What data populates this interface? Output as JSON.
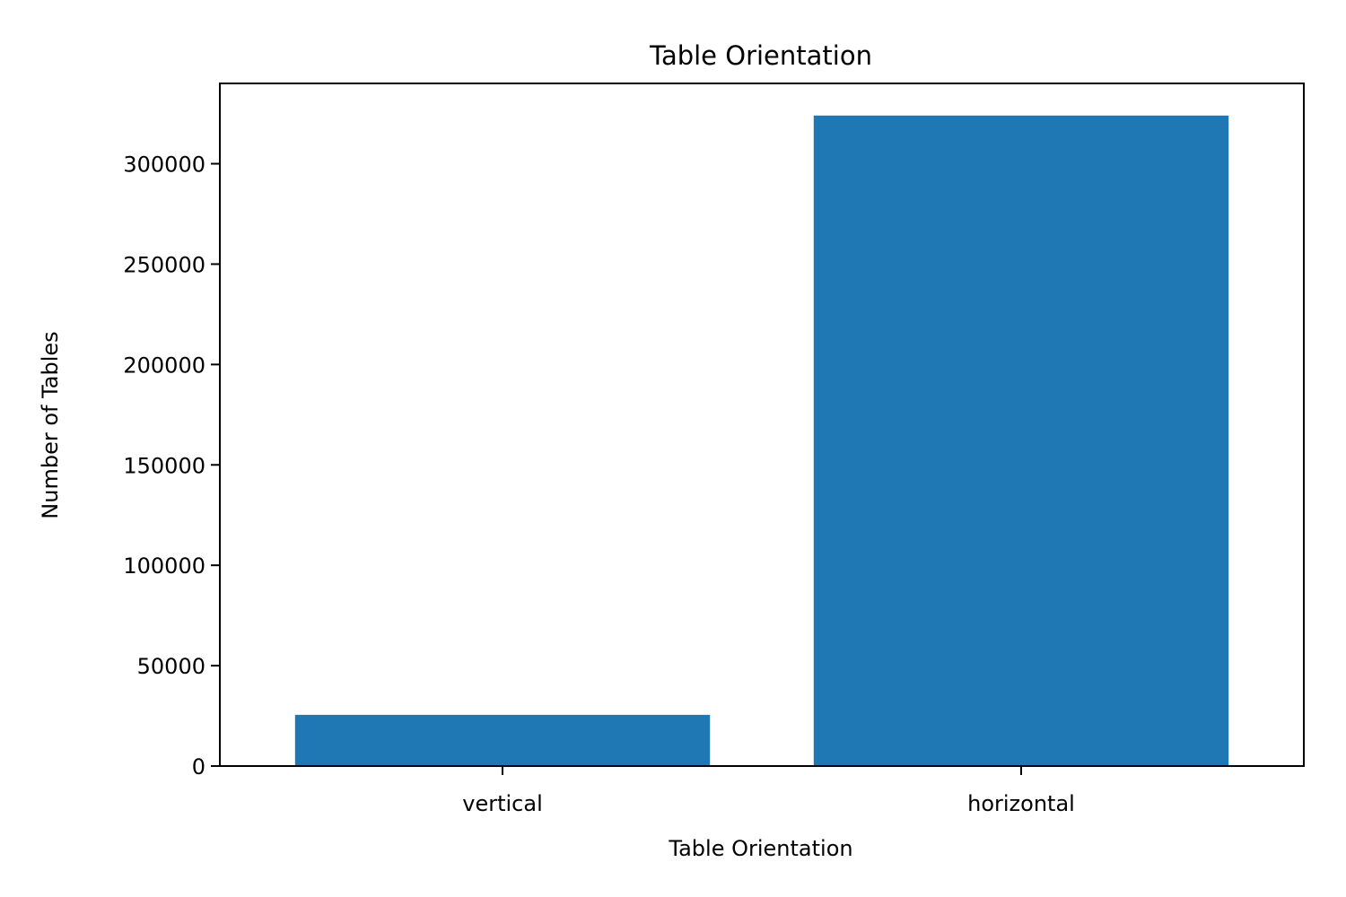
{
  "chart_data": {
    "type": "bar",
    "title": "Table Orientation",
    "xlabel": "Table Orientation",
    "ylabel": "Number of Tables",
    "categories": [
      "vertical",
      "horizontal"
    ],
    "values": [
      25500,
      324000
    ],
    "ylim": [
      0,
      340000
    ],
    "yticks": [
      0,
      50000,
      100000,
      150000,
      200000,
      250000,
      300000
    ],
    "ytick_labels": [
      "0",
      "50000",
      "100000",
      "150000",
      "200000",
      "250000",
      "300000"
    ],
    "grid": false,
    "legend": "none",
    "bar_color": "#1f77b4"
  }
}
